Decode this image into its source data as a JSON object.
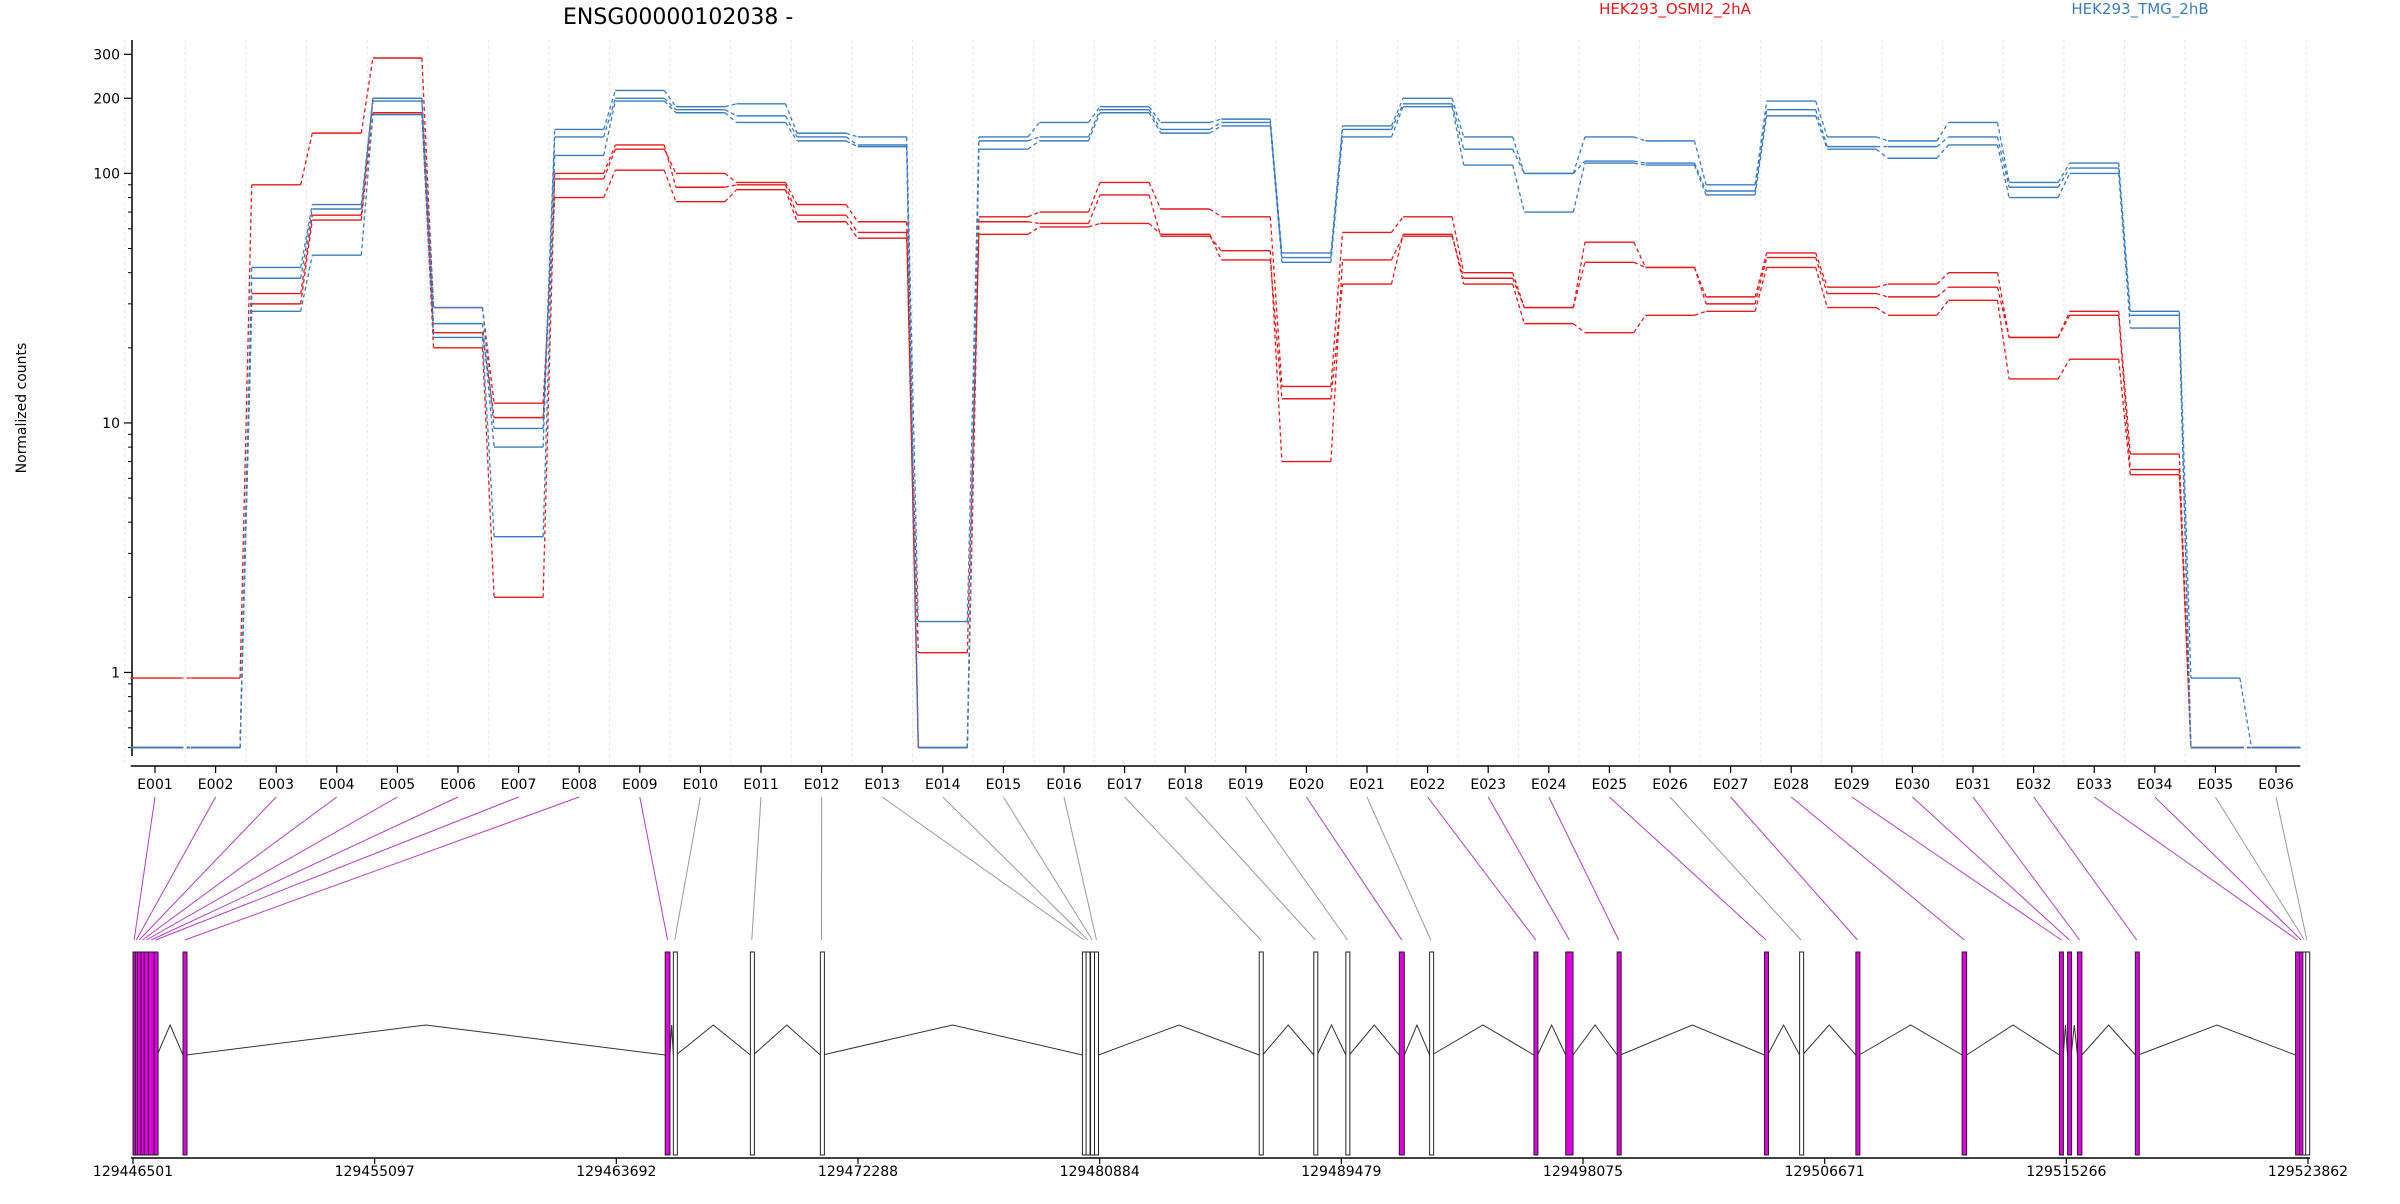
{
  "chart_data": {
    "type": "line",
    "title": "ENSG00000102038 -",
    "ylabel": "Normalized counts",
    "yscale": "log",
    "ylim": [
      0.48,
      330
    ],
    "yticks": [
      1,
      10,
      100,
      200,
      300
    ],
    "ytick_labels": [
      "1",
      "10",
      "100",
      "200",
      "300"
    ],
    "grid": "vertical",
    "legend": "top",
    "colors": {
      "HEK293_OSMI2_2hA": "#e31a1c",
      "HEK293_TMG_2hB": "#3a7dbf",
      "exon_highlight": "#e000e0",
      "exon_normal": "#ffffff"
    },
    "categories": [
      "E001",
      "E002",
      "E003",
      "E004",
      "E005",
      "E006",
      "E007",
      "E008",
      "E009",
      "E010",
      "E011",
      "E012",
      "E013",
      "E014",
      "E015",
      "E016",
      "E017",
      "E018",
      "E019",
      "E020",
      "E021",
      "E022",
      "E023",
      "E024",
      "E025",
      "E026",
      "E027",
      "E028",
      "E029",
      "E030",
      "E031",
      "E032",
      "E033",
      "E034",
      "E035",
      "E036"
    ],
    "series": [
      {
        "name": "HEK293_OSMI2_2hA",
        "values": [
          0.95,
          0.95,
          90,
          145,
          290,
          29,
          12,
          80,
          103,
          77,
          86,
          64,
          55,
          1.2,
          57,
          61,
          63,
          57,
          45,
          12.5,
          36,
          57,
          36,
          25,
          23,
          27,
          28,
          42,
          29,
          27,
          31,
          15,
          18,
          6.2,
          0.5,
          0.5
        ]
      },
      {
        "name": "HEK293_OSMI2_2hA",
        "values": [
          0.5,
          0.5,
          33,
          68,
          200,
          23,
          10.5,
          95,
          125,
          100,
          92,
          75,
          64,
          0.5,
          67,
          70,
          92,
          72,
          67,
          14,
          58,
          67,
          40,
          29,
          53,
          42,
          32,
          48,
          35,
          36,
          40,
          22,
          28,
          7.5,
          0.5,
          0.5
        ]
      },
      {
        "name": "HEK293_OSMI2_2hA",
        "values": [
          0.5,
          0.5,
          30,
          65,
          175,
          20,
          2.0,
          100,
          130,
          88,
          90,
          68,
          58,
          0.5,
          64,
          63,
          82,
          56,
          49,
          7.0,
          45,
          56,
          38,
          29,
          44,
          42,
          30,
          46,
          33,
          32,
          35,
          22,
          27,
          6.5,
          0.5,
          0.5
        ]
      },
      {
        "name": "HEK293_TMG_2hB",
        "values": [
          0.5,
          0.5,
          42,
          75,
          200,
          29,
          9.5,
          150,
          215,
          185,
          190,
          145,
          140,
          1.6,
          140,
          160,
          185,
          160,
          165,
          48,
          155,
          200,
          140,
          100,
          140,
          135,
          90,
          195,
          140,
          135,
          160,
          92,
          110,
          28,
          0.95,
          0.5
        ]
      },
      {
        "name": "HEK293_TMG_2hB",
        "values": [
          0.5,
          0.5,
          38,
          72,
          195,
          25,
          8.0,
          140,
          200,
          180,
          170,
          140,
          130,
          0.5,
          135,
          140,
          180,
          150,
          160,
          46,
          150,
          190,
          125,
          100,
          112,
          110,
          85,
          180,
          128,
          128,
          140,
          88,
          105,
          27,
          0.5,
          0.5
        ]
      },
      {
        "name": "HEK293_TMG_2hB",
        "values": [
          0.5,
          0.5,
          28,
          47,
          172,
          22,
          3.5,
          118,
          195,
          175,
          160,
          135,
          128,
          0.5,
          125,
          135,
          175,
          145,
          155,
          44,
          140,
          185,
          108,
          70,
          110,
          108,
          82,
          170,
          125,
          115,
          130,
          80,
          100,
          24,
          0.5,
          0.5
        ]
      }
    ],
    "gene_track": {
      "coord_ticks": [
        "129446501",
        "129455097",
        "129463692",
        "129472288",
        "129480884",
        "129489479",
        "129498075",
        "129506671",
        "129515266",
        "129523862"
      ],
      "exons": [
        {
          "id": "E001",
          "start": 129446501,
          "end": 129446580,
          "highlight": true
        },
        {
          "id": "E002",
          "start": 129446580,
          "end": 129446660,
          "highlight": true
        },
        {
          "id": "E003",
          "start": 129446660,
          "end": 129446780,
          "highlight": true
        },
        {
          "id": "E004",
          "start": 129446780,
          "end": 129446900,
          "highlight": true
        },
        {
          "id": "E005",
          "start": 129446900,
          "end": 129447050,
          "highlight": true
        },
        {
          "id": "E006",
          "start": 129447050,
          "end": 129447250,
          "highlight": true
        },
        {
          "id": "E007",
          "start": 129447250,
          "end": 129447360,
          "highlight": true
        },
        {
          "id": "E008",
          "start": 129448280,
          "end": 129448400,
          "highlight": true
        },
        {
          "id": "E009",
          "start": 129465430,
          "end": 129465600,
          "highlight": true
        },
        {
          "id": "E010",
          "start": 129465720,
          "end": 129465820,
          "highlight": false
        },
        {
          "id": "E011",
          "start": 129468460,
          "end": 129468560,
          "highlight": false
        },
        {
          "id": "E012",
          "start": 129470950,
          "end": 129471030,
          "highlight": false
        },
        {
          "id": "E013",
          "start": 129480270,
          "end": 129480380,
          "highlight": false
        },
        {
          "id": "E014",
          "start": 129480400,
          "end": 129480520,
          "highlight": false
        },
        {
          "id": "E015",
          "start": 129480560,
          "end": 129480680,
          "highlight": false
        },
        {
          "id": "E016",
          "start": 129480700,
          "end": 129480840,
          "highlight": false
        },
        {
          "id": "E017",
          "start": 129486560,
          "end": 129486680,
          "highlight": false
        },
        {
          "id": "E018",
          "start": 129488500,
          "end": 129488620,
          "highlight": false
        },
        {
          "id": "E019",
          "start": 129489640,
          "end": 129489760,
          "highlight": false
        },
        {
          "id": "E020",
          "start": 129491540,
          "end": 129491720,
          "highlight": true
        },
        {
          "id": "E021",
          "start": 129492620,
          "end": 129492700,
          "highlight": false
        },
        {
          "id": "E022",
          "start": 129496330,
          "end": 129496460,
          "highlight": true
        },
        {
          "id": "E023",
          "start": 129497460,
          "end": 129497720,
          "highlight": true
        },
        {
          "id": "E024",
          "start": 129499290,
          "end": 129499400,
          "highlight": true
        },
        {
          "id": "E025",
          "start": 129504530,
          "end": 129504640,
          "highlight": true
        },
        {
          "id": "E026",
          "start": 129505780,
          "end": 129505880,
          "highlight": false
        },
        {
          "id": "E027",
          "start": 129507780,
          "end": 129507900,
          "highlight": true
        },
        {
          "id": "E028",
          "start": 129511560,
          "end": 129511720,
          "highlight": true
        },
        {
          "id": "E029",
          "start": 129515020,
          "end": 129515160,
          "highlight": true
        },
        {
          "id": "E030",
          "start": 129515310,
          "end": 129515440,
          "highlight": true
        },
        {
          "id": "E031",
          "start": 129515660,
          "end": 129515820,
          "highlight": true
        },
        {
          "id": "E032",
          "start": 129517720,
          "end": 129517820,
          "highlight": true
        },
        {
          "id": "E033",
          "start": 129523420,
          "end": 129523560,
          "highlight": true
        },
        {
          "id": "E034",
          "start": 129523560,
          "end": 129523680,
          "highlight": true
        },
        {
          "id": "E035",
          "start": 129523680,
          "end": 129523780,
          "highlight": false
        },
        {
          "id": "E036",
          "start": 129523780,
          "end": 129523862,
          "highlight": false
        }
      ]
    }
  }
}
